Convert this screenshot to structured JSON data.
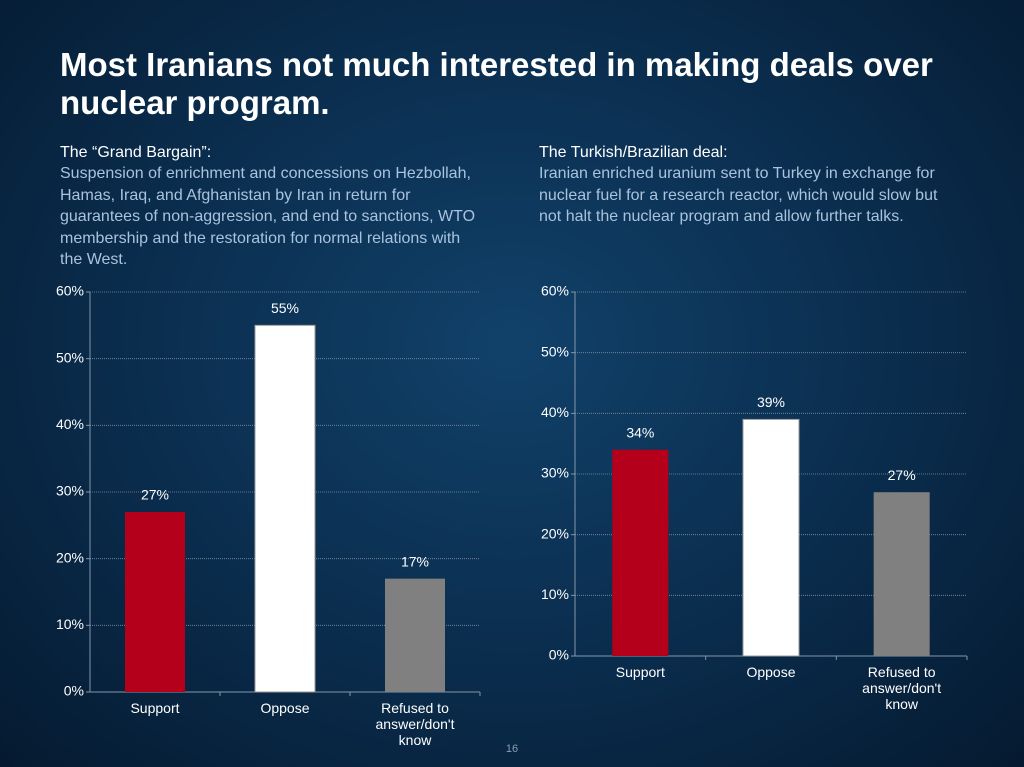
{
  "slide": {
    "title": "Most Iranians not much interested in making deals over nuclear program.",
    "page_number": "16"
  },
  "chart_data": [
    {
      "type": "bar",
      "subtitle": "The “Grand Bargain”:",
      "description": "Suspension of enrichment and concessions on Hezbollah, Hamas, Iraq, and Afghanistan by Iran in return for guarantees of  non-aggression, and end to sanctions, WTO membership and the restoration for normal relations with the West.",
      "categories": [
        "Support",
        "Oppose",
        "Refused to answer/don't know"
      ],
      "values": [
        27,
        55,
        17
      ],
      "value_labels": [
        "27%",
        "55%",
        "17%"
      ],
      "colors": [
        "#b5001b",
        "#ffffff",
        "#808080"
      ],
      "ylim": [
        0,
        60
      ],
      "yticks": [
        {
          "value": 0,
          "label": "0%"
        },
        {
          "value": 10,
          "label": "10%"
        },
        {
          "value": 20,
          "label": "20%"
        },
        {
          "value": 30,
          "label": "30%"
        },
        {
          "value": 40,
          "label": "40%"
        },
        {
          "value": 50,
          "label": "50%"
        },
        {
          "value": 60,
          "label": "60%"
        }
      ],
      "grid": true
    },
    {
      "type": "bar",
      "subtitle": "The Turkish/Brazilian deal:",
      "description": "Iranian enriched uranium sent to Turkey in exchange for nuclear fuel for a research reactor, which would slow but not halt the nuclear program and allow further talks.",
      "categories": [
        "Support",
        "Oppose",
        "Refused to answer/don't know"
      ],
      "values": [
        34,
        39,
        27
      ],
      "value_labels": [
        "34%",
        "39%",
        "27%"
      ],
      "colors": [
        "#b5001b",
        "#ffffff",
        "#808080"
      ],
      "ylim": [
        0,
        60
      ],
      "yticks": [
        {
          "value": 0,
          "label": "0%"
        },
        {
          "value": 10,
          "label": "10%"
        },
        {
          "value": 20,
          "label": "20%"
        },
        {
          "value": 30,
          "label": "30%"
        },
        {
          "value": 40,
          "label": "40%"
        },
        {
          "value": 50,
          "label": "50%"
        },
        {
          "value": 60,
          "label": "60%"
        }
      ],
      "grid": true
    }
  ]
}
